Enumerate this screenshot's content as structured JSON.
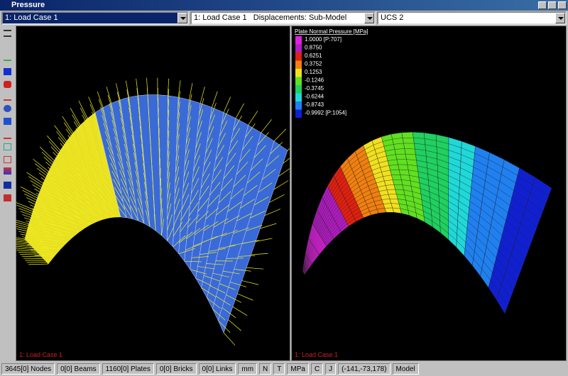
{
  "window": {
    "title": "Pressure"
  },
  "toolbar": {
    "load_case": "1: Load Case 1",
    "result": "1: Load Case 1   Displacements: Sub-Model",
    "ucs": "UCS 2"
  },
  "views": [
    {
      "label": "1: Load Case 1"
    },
    {
      "label": "1: Load Case 1"
    }
  ],
  "legend": {
    "title": "Plate Normal Pressure [MPa]",
    "entries": [
      {
        "label": "1.0000 [P:707]",
        "color": "#e020e0"
      },
      {
        "label": "0.8750",
        "color": "#b01cc0"
      },
      {
        "label": "0.6251",
        "color": "#e02010"
      },
      {
        "label": "0.3752",
        "color": "#f08010"
      },
      {
        "label": "0.1253",
        "color": "#f0e020"
      },
      {
        "label": "-0.1246",
        "color": "#60e020"
      },
      {
        "label": "-0.3745",
        "color": "#20d060"
      },
      {
        "label": "-0.6244",
        "color": "#20d8d8"
      },
      {
        "label": "-0.8743",
        "color": "#2080f0"
      },
      {
        "label": "-0.9992 [P:1054]",
        "color": "#1020d0"
      }
    ]
  },
  "status_bar": {
    "items": [
      "3645[0] Nodes",
      "0[0] Beams",
      "1160[0] Plates",
      "0[0] Bricks",
      "0[0] Links",
      "mm",
      "N",
      "T",
      "MPa",
      "C",
      "J",
      "(-141,-73,178)",
      "Model"
    ]
  }
}
